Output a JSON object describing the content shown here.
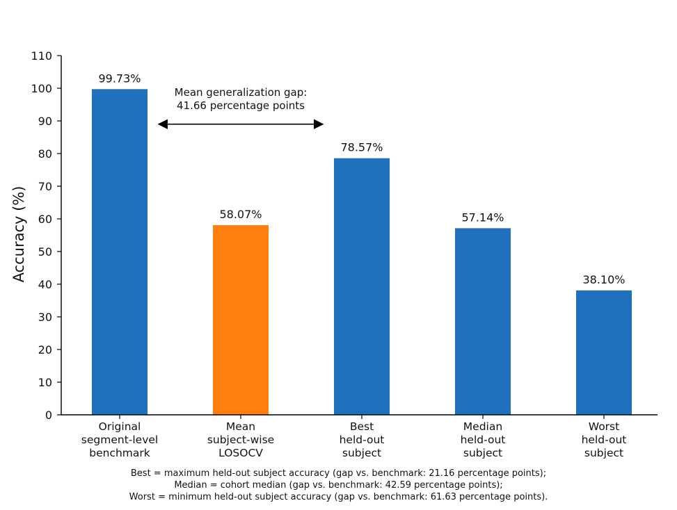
{
  "chart_data": {
    "type": "bar",
    "ylabel": "Accuracy (%)",
    "xlabel": "",
    "ylim": [
      0,
      110
    ],
    "yticks": [
      0,
      10,
      20,
      30,
      40,
      50,
      60,
      70,
      80,
      90,
      100,
      110
    ],
    "grid": false,
    "categories": [
      [
        "Original",
        "segment-level",
        "benchmark"
      ],
      [
        "Mean",
        "subject-wise",
        "LOSOCV"
      ],
      [
        "Best",
        "held-out",
        "subject"
      ],
      [
        "Median",
        "held-out",
        "subject"
      ],
      [
        "Worst",
        "held-out",
        "subject"
      ]
    ],
    "values": [
      99.73,
      58.07,
      78.57,
      57.14,
      38.1
    ],
    "data_labels": [
      "99.73%",
      "58.07%",
      "78.57%",
      "57.14%",
      "38.10%"
    ],
    "colors": [
      "#1f70bd",
      "#ff7f0e",
      "#1f70bd",
      "#1f70bd",
      "#1f70bd"
    ],
    "annotation": {
      "lines": [
        "Mean generalization gap:",
        "41.66 percentage points"
      ],
      "arrow_y": 89,
      "from_bar": 0,
      "to_bar": 2
    }
  },
  "caption": {
    "line1": "Best = maximum held-out subject accuracy (gap vs. benchmark: 21.16 percentage points);",
    "line2": "Median = cohort median (gap vs. benchmark: 42.59 percentage points);",
    "line3": "Worst = minimum held-out subject accuracy (gap vs. benchmark: 61.63 percentage points)."
  }
}
